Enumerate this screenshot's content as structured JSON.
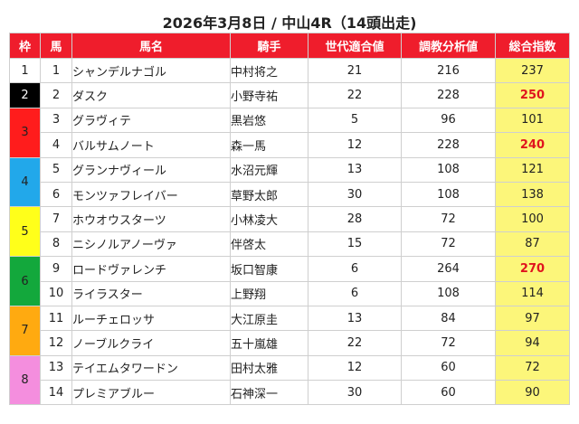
{
  "title": "2026年3月8日 / 中山4R（14頭出走)",
  "headers": [
    "枠",
    "馬",
    "馬名",
    "騎手",
    "世代適合値",
    "調教分析値",
    "総合指数"
  ],
  "waku": [
    {
      "label": "1",
      "color": "#ffffff",
      "text": "#222222",
      "rows": 1
    },
    {
      "label": "2",
      "color": "#000000",
      "text": "#ffffff",
      "rows": 1
    },
    {
      "label": "3",
      "color": "#ff1c1c",
      "text": "#222222",
      "rows": 2
    },
    {
      "label": "4",
      "color": "#22a8ea",
      "text": "#222222",
      "rows": 2
    },
    {
      "label": "5",
      "color": "#ffff1a",
      "text": "#222222",
      "rows": 2
    },
    {
      "label": "6",
      "color": "#13a83c",
      "text": "#222222",
      "rows": 2
    },
    {
      "label": "7",
      "color": "#ffaa10",
      "text": "#222222",
      "rows": 2
    },
    {
      "label": "8",
      "color": "#f48ede",
      "text": "#222222",
      "rows": 2
    }
  ],
  "rows": [
    {
      "num": "1",
      "name": "シャンデルナゴル",
      "jockey": "中村将之",
      "sedai": "21",
      "chokyo": "216",
      "index": "237",
      "hot": false
    },
    {
      "num": "2",
      "name": "ダスク",
      "jockey": "小野寺祐",
      "sedai": "22",
      "chokyo": "228",
      "index": "250",
      "hot": true
    },
    {
      "num": "3",
      "name": "グラヴィテ",
      "jockey": "黒岩悠",
      "sedai": "5",
      "chokyo": "96",
      "index": "101",
      "hot": false
    },
    {
      "num": "4",
      "name": "バルサムノート",
      "jockey": "森一馬",
      "sedai": "12",
      "chokyo": "228",
      "index": "240",
      "hot": true
    },
    {
      "num": "5",
      "name": "グランナヴィール",
      "jockey": "水沼元輝",
      "sedai": "13",
      "chokyo": "108",
      "index": "121",
      "hot": false
    },
    {
      "num": "6",
      "name": "モンツァフレイバー",
      "jockey": "草野太郎",
      "sedai": "30",
      "chokyo": "108",
      "index": "138",
      "hot": false
    },
    {
      "num": "7",
      "name": "ホウオウスターツ",
      "jockey": "小林凌大",
      "sedai": "28",
      "chokyo": "72",
      "index": "100",
      "hot": false
    },
    {
      "num": "8",
      "name": "ニシノルアノーヴァ",
      "jockey": "伴啓太",
      "sedai": "15",
      "chokyo": "72",
      "index": "87",
      "hot": false
    },
    {
      "num": "9",
      "name": "ロードヴァレンチ",
      "jockey": "坂口智康",
      "sedai": "6",
      "chokyo": "264",
      "index": "270",
      "hot": true
    },
    {
      "num": "10",
      "name": "ライラスター",
      "jockey": "上野翔",
      "sedai": "6",
      "chokyo": "108",
      "index": "114",
      "hot": false
    },
    {
      "num": "11",
      "name": "ルーチェロッサ",
      "jockey": "大江原圭",
      "sedai": "13",
      "chokyo": "84",
      "index": "97",
      "hot": false
    },
    {
      "num": "12",
      "name": "ノーブルクライ",
      "jockey": "五十嵐雄",
      "sedai": "22",
      "chokyo": "72",
      "index": "94",
      "hot": false
    },
    {
      "num": "13",
      "name": "テイエムタワードン",
      "jockey": "田村太雅",
      "sedai": "12",
      "chokyo": "60",
      "index": "72",
      "hot": false
    },
    {
      "num": "14",
      "name": "プレミアブルー",
      "jockey": "石神深一",
      "sedai": "30",
      "chokyo": "60",
      "index": "90",
      "hot": false
    }
  ]
}
